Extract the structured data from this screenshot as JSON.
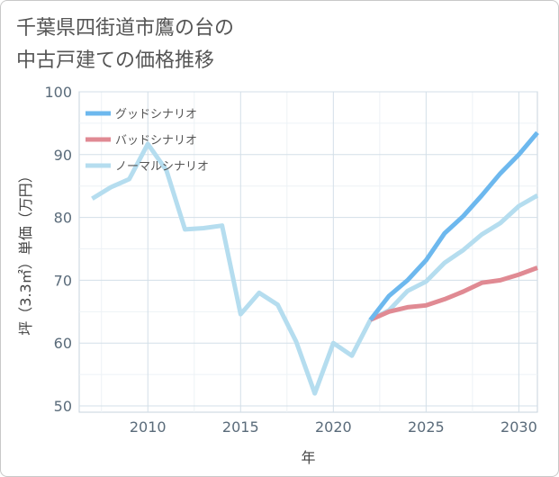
{
  "chart_data": {
    "type": "line",
    "title": [
      "千葉県四街道市鷹の台の",
      "中古戸建ての価格推移"
    ],
    "xlabel": "年",
    "ylabel": "坪（3.3㎡）単価（万円）",
    "xlim": [
      2006.3,
      2031
    ],
    "ylim": [
      49,
      100
    ],
    "xticks": [
      2010,
      2015,
      2020,
      2025,
      2030
    ],
    "yticks": [
      50,
      60,
      70,
      80,
      90,
      100
    ],
    "grid": true,
    "legend_position": "top-left",
    "series": [
      {
        "name": "グッドシナリオ",
        "color": "#6db8ee",
        "x": [
          2022,
          2023,
          2024,
          2025,
          2026,
          2027,
          2028,
          2029,
          2030,
          2031
        ],
        "y": [
          63.7,
          67.5,
          70.0,
          73.2,
          77.5,
          80.2,
          83.5,
          87.0,
          90.0,
          93.5
        ]
      },
      {
        "name": "バッドシナリオ",
        "color": "#e08a93",
        "x": [
          2022,
          2023,
          2024,
          2025,
          2026,
          2027,
          2028,
          2029,
          2030,
          2031
        ],
        "y": [
          63.7,
          65.0,
          65.7,
          66.0,
          67.0,
          68.2,
          69.6,
          70.0,
          70.9,
          72.0
        ]
      },
      {
        "name": "ノーマルシナリオ",
        "color": "#b5ddef",
        "x": [
          2007,
          2008,
          2009,
          2010,
          2011,
          2012,
          2013,
          2014,
          2015,
          2016,
          2017,
          2018,
          2019,
          2020,
          2021,
          2022,
          2023,
          2024,
          2025,
          2026,
          2027,
          2028,
          2029,
          2030,
          2031
        ],
        "y": [
          83.0,
          84.8,
          86.1,
          91.7,
          87.5,
          78.1,
          78.3,
          78.7,
          64.6,
          68.0,
          66.1,
          60.2,
          52.0,
          60.0,
          58.0,
          63.7,
          65.2,
          68.3,
          69.8,
          72.8,
          74.8,
          77.3,
          79.1,
          81.8,
          83.5
        ]
      }
    ]
  }
}
